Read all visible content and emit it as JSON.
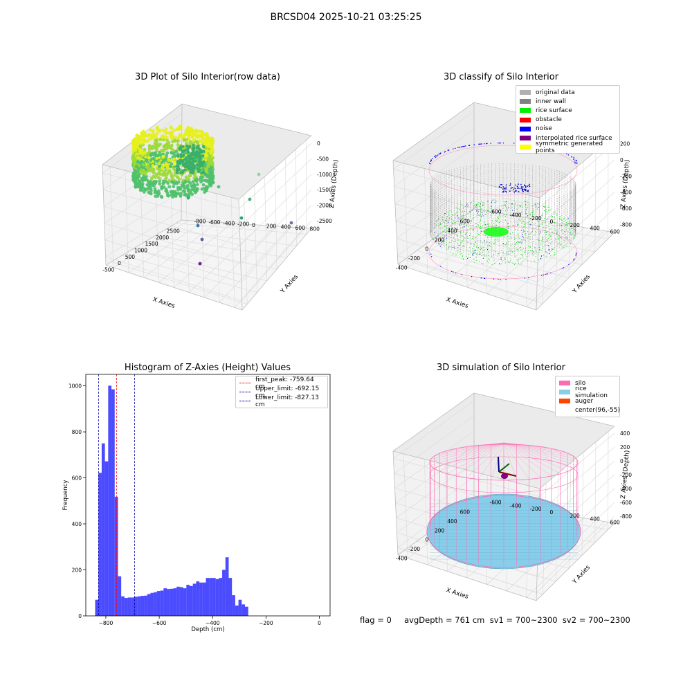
{
  "figure": {
    "title": "BRCSD04 2025-10-21 03:25:25"
  },
  "panels": {
    "raw": {
      "title": "3D Plot of Silo Interior(row data)",
      "xlabel": "X Axies",
      "ylabel": "Y Axies",
      "zlabel": "Z Axies (Depth)",
      "xticks": [
        "-500",
        "0",
        "500",
        "1000",
        "1500",
        "2000",
        "2500"
      ],
      "yticks": [
        "-800",
        "-600",
        "-400",
        "-200",
        "0",
        "200",
        "400",
        "600",
        "800"
      ],
      "zticks": [
        "0",
        "-500",
        "-1000",
        "-1500",
        "-2000",
        "-2500"
      ]
    },
    "classify": {
      "title": "3D classify of Silo Interior",
      "xlabel": "X Axies",
      "ylabel": "Y Axies",
      "zlabel": "Z Axies (Depth)",
      "xticks": [
        "-400",
        "-200",
        "0",
        "200",
        "400",
        "600"
      ],
      "yticks": [
        "-600",
        "-400",
        "-200",
        "0",
        "200",
        "400",
        "600"
      ],
      "zticks": [
        "200",
        "0",
        "-200",
        "-400",
        "-600",
        "-800"
      ],
      "legend": [
        {
          "label": "original data",
          "color": "#b0b0b0"
        },
        {
          "label": "inner wall",
          "color": "#808080"
        },
        {
          "label": "rice surface",
          "color": "#00ee00"
        },
        {
          "label": "obstacle",
          "color": "#ff0000"
        },
        {
          "label": "noise",
          "color": "#0000ff"
        },
        {
          "label": "interpolated rice surface",
          "color": "#800080"
        },
        {
          "label": "symmetric generated points",
          "color": "#ffff00"
        }
      ]
    },
    "simulation": {
      "title": "3D simulation of Silo Interior",
      "xlabel": "X Axies",
      "ylabel": "Y Axies",
      "zlabel": "Z Axies (Depth)",
      "xticks": [
        "-400",
        "-200",
        "0",
        "200",
        "400",
        "600"
      ],
      "yticks": [
        "-600",
        "-400",
        "-200",
        "0",
        "200",
        "400",
        "600"
      ],
      "zticks": [
        "400",
        "200",
        "0",
        "-200",
        "-400",
        "-600",
        "-800"
      ],
      "legend": [
        {
          "label": "silo",
          "color": "#ff69b4"
        },
        {
          "label": "rice simulation",
          "color": "#87ceeb"
        },
        {
          "label": "auger",
          "color": "#ff4500"
        },
        {
          "label": "center(96,-55)",
          "color": ""
        }
      ]
    }
  },
  "chart_data": {
    "type": "bar",
    "title": "Histogram of Z-Axies (Height) Values",
    "xlabel": "Depth (cm)",
    "ylabel": "Frequency",
    "xlim": [
      -875,
      40
    ],
    "ylim": [
      0,
      1050
    ],
    "xticks": [
      -800,
      -600,
      -400,
      -200,
      0
    ],
    "yticks": [
      0,
      200,
      400,
      600,
      800,
      1000
    ],
    "bar_color": "#0000ff",
    "bin_start": -840,
    "bin_width": 12.2,
    "values": [
      70,
      622,
      750,
      672,
      1001,
      985,
      518,
      172,
      85,
      78,
      80,
      80,
      83,
      85,
      87,
      88,
      95,
      100,
      103,
      108,
      110,
      120,
      117,
      118,
      120,
      127,
      125,
      120,
      135,
      130,
      140,
      150,
      145,
      145,
      165,
      165,
      165,
      160,
      165,
      200,
      255,
      165,
      90,
      45,
      70,
      50,
      40
    ],
    "reference_lines": [
      {
        "label": "first_peak: -759.64 cm",
        "value": -759.64,
        "color": "#ff0000"
      },
      {
        "label": "Upper_limit: -692.15 cm",
        "value": -692.15,
        "color": "#0000aa"
      },
      {
        "label": "Lower_limit: -827.13 cm",
        "value": -827.13,
        "color": "#0000aa"
      }
    ]
  },
  "status_bar": {
    "text": "flag = 0     avgDepth = 761 cm  sv1 = 700~2300  sv2 = 700~2300"
  }
}
